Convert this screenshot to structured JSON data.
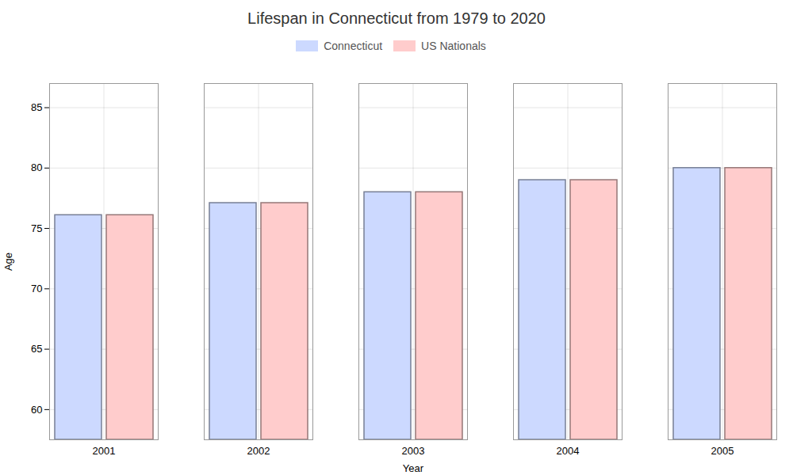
{
  "chart_data": {
    "type": "bar",
    "title": "Lifespan in Connecticut from 1979 to 2020",
    "x_label": "Year",
    "y_label": "Age",
    "categories": [
      "2001",
      "2002",
      "2003",
      "2004",
      "2005"
    ],
    "series": [
      {
        "name": "Connecticut",
        "color": "#ccd9ff",
        "values": [
          76.1,
          77.1,
          78.0,
          79.0,
          80.0
        ]
      },
      {
        "name": "US Nationals",
        "color": "#ffcccc",
        "values": [
          76.1,
          77.1,
          78.0,
          79.0,
          80.0
        ]
      }
    ],
    "ylim": [
      57.5,
      87
    ],
    "yticks": [
      60,
      65,
      70,
      75,
      80,
      85
    ],
    "grid": true,
    "legend": "top"
  }
}
